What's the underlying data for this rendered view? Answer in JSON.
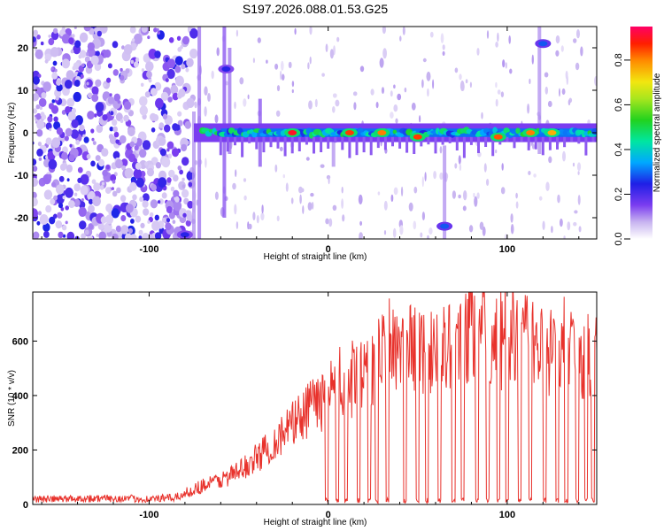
{
  "title": "S197.2026.088.01.53.G25",
  "chart_data": [
    {
      "type": "heatmap",
      "name": "spectrogram",
      "xlabel": "Height of straight line (km)",
      "ylabel": "Frequency (Hz)",
      "xlim": [
        -165,
        150
      ],
      "ylim": [
        -25,
        25
      ],
      "xticks": [
        -100,
        0,
        100
      ],
      "yticks": [
        -20,
        -10,
        0,
        10,
        20
      ],
      "colorbar": {
        "label": "Normalized spectral amplitude",
        "range": [
          0,
          0.95
        ],
        "ticks": [
          "0.0",
          "0.2",
          "0.4",
          "0.6",
          "0.8"
        ]
      },
      "features": {
        "noise_region_x": [
          -165,
          -75
        ],
        "signal_line_frequency_hz": 0,
        "signal_line_x": [
          -75,
          150
        ],
        "peaks": [
          {
            "x": -20,
            "y": 0,
            "amp": 0.95
          },
          {
            "x": 12,
            "y": 0,
            "amp": 0.9
          },
          {
            "x": 30,
            "y": 0,
            "amp": 0.85
          },
          {
            "x": 50,
            "y": -1,
            "amp": 0.9
          },
          {
            "x": 95,
            "y": -1,
            "amp": 0.88
          },
          {
            "x": 113,
            "y": 0,
            "amp": 0.85
          },
          {
            "x": 125,
            "y": 0,
            "amp": 0.8
          },
          {
            "x": 65,
            "y": -22,
            "amp": 0.3
          },
          {
            "x": -80,
            "y": -24,
            "amp": 0.25
          },
          {
            "x": 120,
            "y": 21,
            "amp": 0.3
          },
          {
            "x": -57,
            "y": 15,
            "amp": 0.25
          }
        ]
      }
    },
    {
      "type": "line",
      "name": "snr",
      "xlabel": "Height of straight line (km)",
      "ylabel": "SNR (10 * v/v)",
      "xlim": [
        -165,
        150
      ],
      "ylim": [
        0,
        780
      ],
      "xticks": [
        -100,
        0,
        100
      ],
      "yticks": [
        0,
        200,
        400,
        600
      ],
      "color": "#e8322c",
      "x": [
        -165,
        -150,
        -140,
        -120,
        -100,
        -85,
        -80,
        -70,
        -60,
        -50,
        -40,
        -30,
        -20,
        -10,
        0,
        10,
        20,
        30,
        40,
        50,
        60,
        70,
        80,
        90,
        100,
        110,
        120,
        130,
        140,
        150
      ],
      "values": [
        20,
        20,
        22,
        22,
        20,
        25,
        40,
        70,
        90,
        120,
        170,
        230,
        290,
        350,
        380,
        430,
        470,
        540,
        560,
        570,
        580,
        600,
        620,
        600,
        590,
        600,
        560,
        560,
        540,
        550
      ],
      "dropouts_to_zero_x": [
        -1,
        5,
        10,
        17,
        23,
        27,
        33,
        43,
        50,
        55,
        62,
        70,
        75,
        83,
        89,
        95,
        100,
        107,
        113,
        121,
        128,
        133,
        139,
        144,
        148
      ]
    }
  ]
}
